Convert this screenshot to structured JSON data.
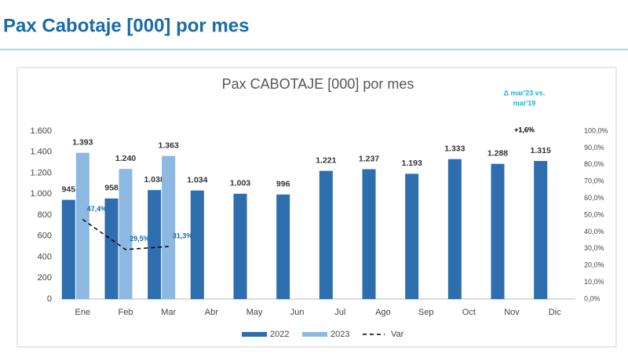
{
  "header": {
    "title": "Pax Cabotaje [000] por mes"
  },
  "chart_data": {
    "type": "bar",
    "title": "Pax CABOTAJE [000] por mes",
    "annotation_lines": [
      "Δ mar'23 vs.",
      "mar'19"
    ],
    "annotation_value": "+1,6%",
    "categories": [
      "Ene",
      "Feb",
      "Mar",
      "Abr",
      "May",
      "Jun",
      "Jul",
      "Ago",
      "Sep",
      "Oct",
      "Nov",
      "Dic"
    ],
    "series": [
      {
        "name": "2022",
        "color": "#2e6dae",
        "type": "bar",
        "values": [
          945,
          958,
          1038,
          1034,
          1003,
          996,
          1221,
          1237,
          1193,
          1333,
          1288,
          1315
        ],
        "value_labels": [
          "945",
          "958",
          "1.038",
          "1.034",
          "1.003",
          "996",
          "1.221",
          "1.237",
          "1.193",
          "1.333",
          "1.288",
          "1.315"
        ]
      },
      {
        "name": "2023",
        "color": "#8db8e2",
        "type": "bar",
        "values": [
          1393,
          1240,
          1363,
          null,
          null,
          null,
          null,
          null,
          null,
          null,
          null,
          null
        ],
        "value_labels": [
          "1.393",
          "1.240",
          "1.363",
          null,
          null,
          null,
          null,
          null,
          null,
          null,
          null,
          null
        ]
      },
      {
        "name": "Var",
        "color": "#000000",
        "type": "line",
        "axis": "y2",
        "values": [
          47.4,
          29.5,
          31.3,
          null,
          null,
          null,
          null,
          null,
          null,
          null,
          null,
          null
        ],
        "value_labels": [
          "47,4%",
          "29,5%",
          "31,3%",
          null,
          null,
          null,
          null,
          null,
          null,
          null,
          null,
          null
        ]
      }
    ],
    "ylim": [
      0,
      1600
    ],
    "yticks": [
      0,
      200,
      400,
      600,
      800,
      {
        "value": 1000,
        "label": "1.000"
      },
      {
        "value": 1200,
        "label": "1.200"
      },
      {
        "value": 1400,
        "label": "1.400"
      },
      {
        "value": 1600,
        "label": "1.600"
      }
    ],
    "y2lim": [
      0,
      100
    ],
    "y2ticks": [
      {
        "value": 0,
        "label": "0,0%"
      },
      {
        "value": 10,
        "label": "10,0%"
      },
      {
        "value": 20,
        "label": "20,0%"
      },
      {
        "value": 30,
        "label": "30,0%"
      },
      {
        "value": 40,
        "label": "40,0%"
      },
      {
        "value": 50,
        "label": "50,0%"
      },
      {
        "value": 60,
        "label": "60,0%"
      },
      {
        "value": 70,
        "label": "70,0%"
      },
      {
        "value": 80,
        "label": "80,0%"
      },
      {
        "value": 90,
        "label": "90,0%"
      },
      {
        "value": 100,
        "label": "100,0%"
      }
    ],
    "grid": false,
    "legend": "bottom"
  }
}
